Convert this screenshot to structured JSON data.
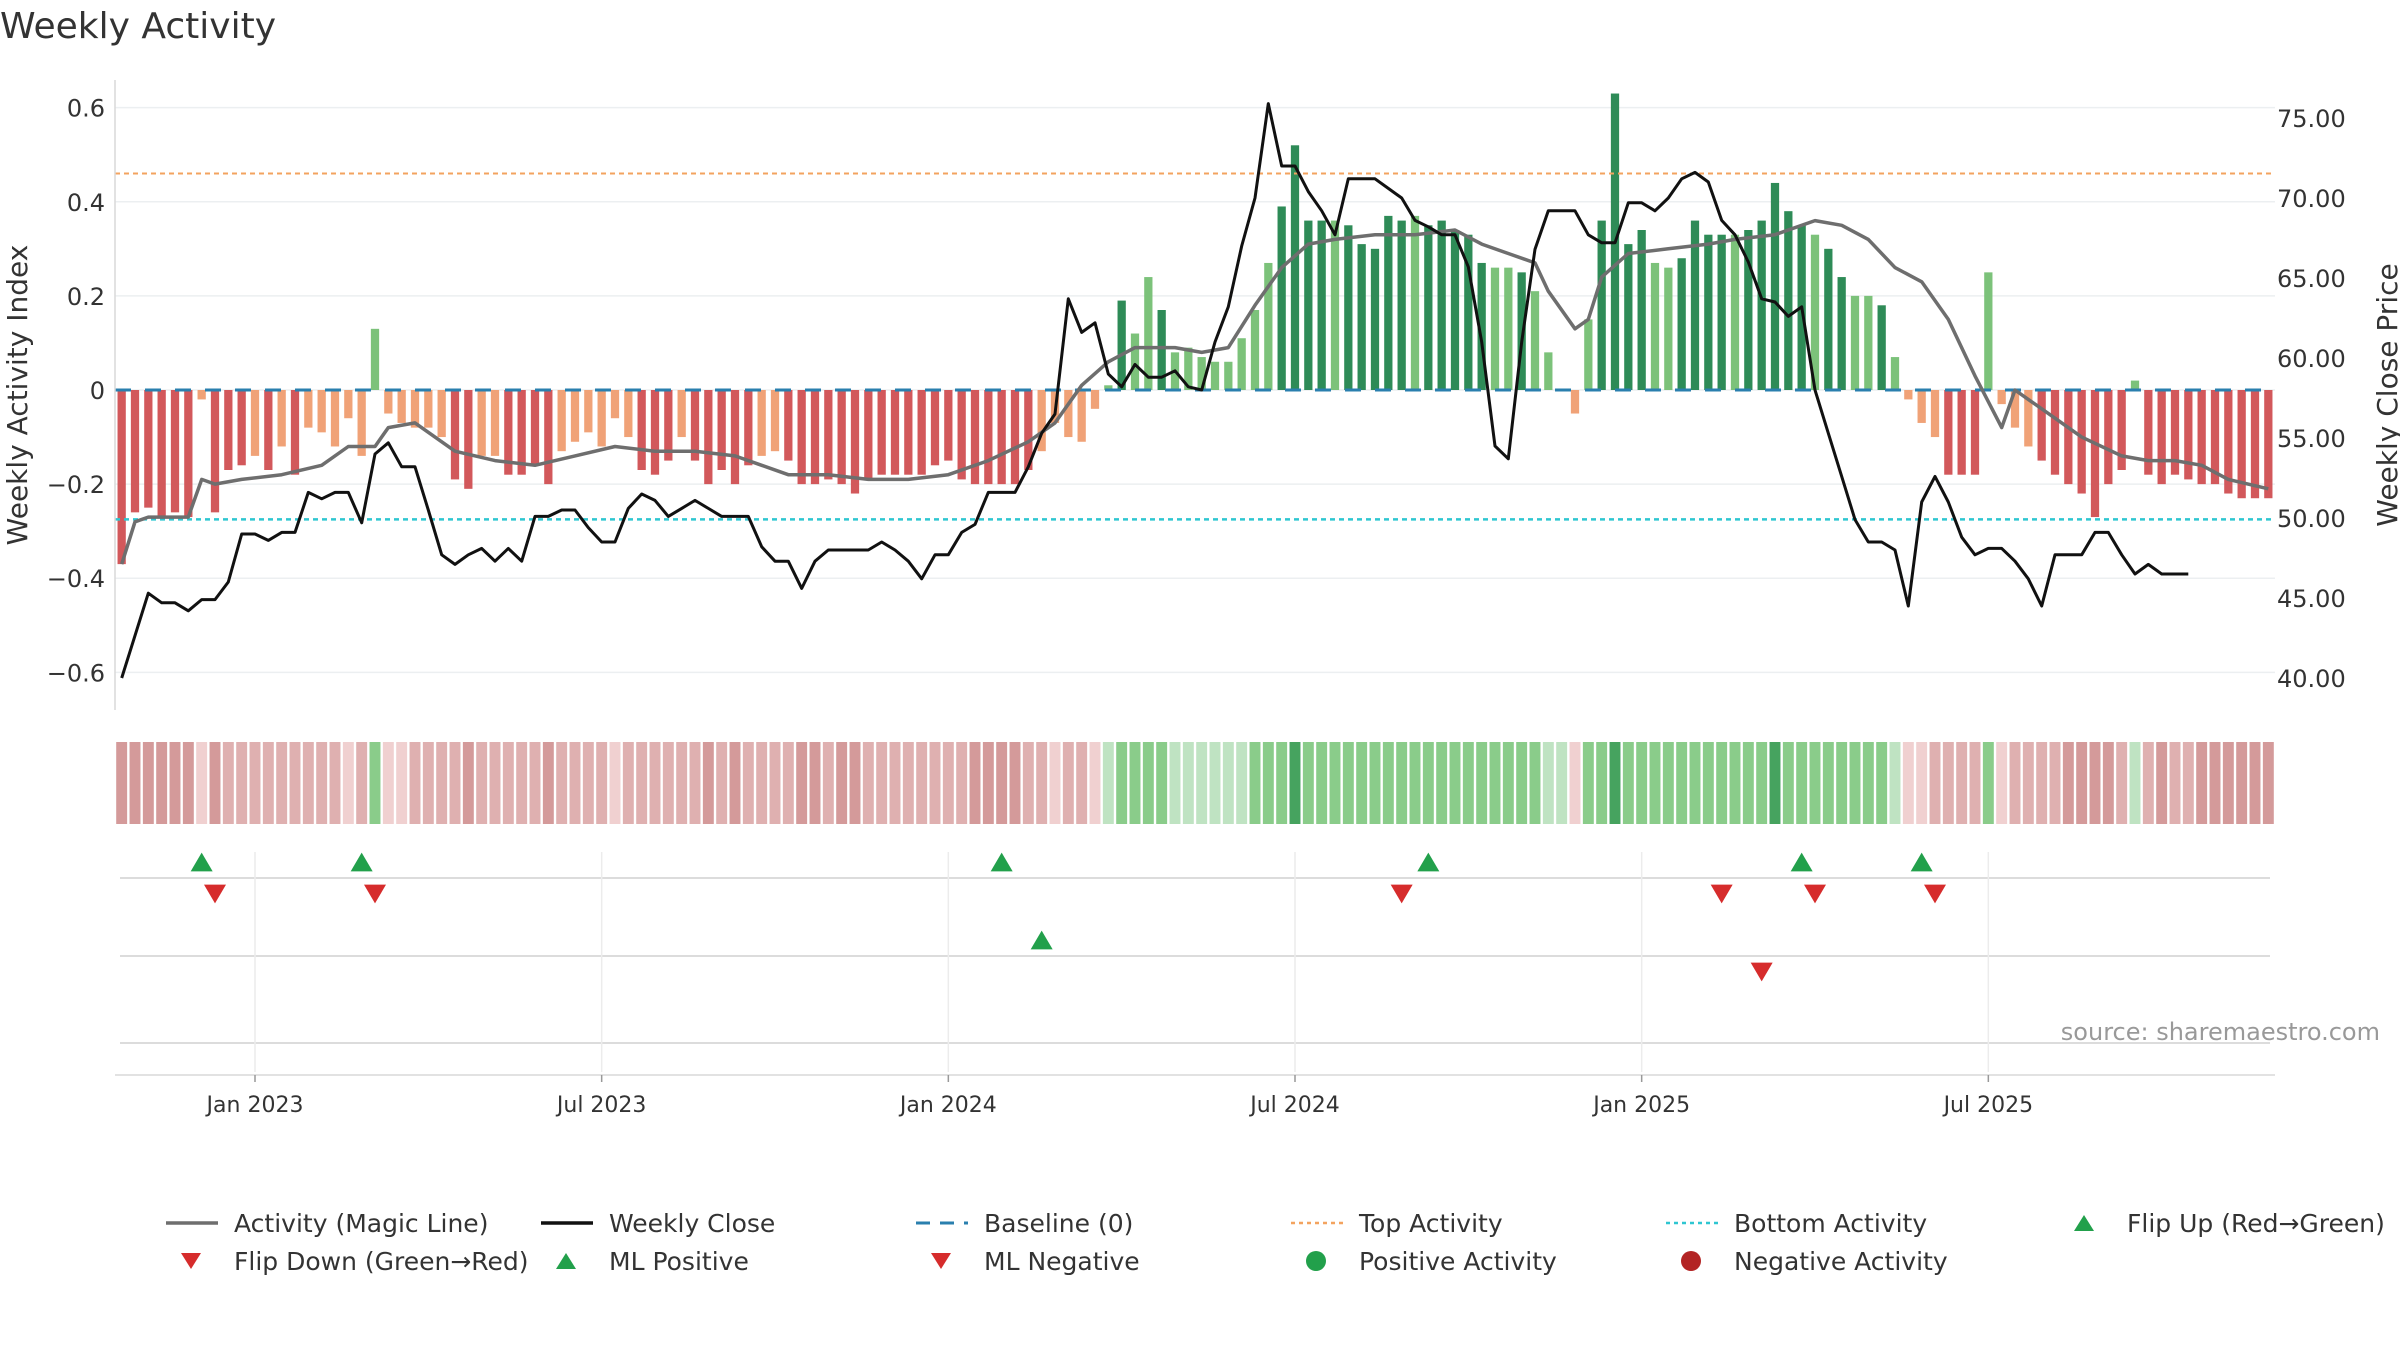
{
  "chart_data": {
    "type": "bar+line",
    "title": "Weekly Activity",
    "ylabel_left": "Weekly Activity Index",
    "ylabel_right": "Weekly Close Price",
    "ylim_left": [
      -0.68,
      0.68
    ],
    "ylim_right": [
      38.0,
      78.0
    ],
    "yticks_left": [
      {
        "v": 0.6,
        "label": "0.6"
      },
      {
        "v": 0.4,
        "label": "0.4"
      },
      {
        "v": 0.2,
        "label": "0.2"
      },
      {
        "v": 0,
        "label": "0"
      },
      {
        "v": -0.2,
        "label": "−0.2"
      },
      {
        "v": -0.4,
        "label": "−0.4"
      },
      {
        "v": -0.6,
        "label": "−0.6"
      }
    ],
    "yticks_right": [
      "75.00",
      "70.00",
      "65.00",
      "60.00",
      "55.00",
      "50.00",
      "45.00",
      "40.00"
    ],
    "x_ticks": [
      {
        "week": 10,
        "label": "Jan 2023"
      },
      {
        "week": 36,
        "label": "Jul 2023"
      },
      {
        "week": 62,
        "label": "Jan 2024"
      },
      {
        "week": 88,
        "label": "Jul 2024"
      },
      {
        "week": 114,
        "label": "Jan 2025"
      },
      {
        "week": 140,
        "label": "Jul 2025"
      }
    ],
    "top_activity": 0.46,
    "bottom_activity": -0.275,
    "baseline": 0,
    "activity": [
      -0.37,
      -0.26,
      -0.25,
      -0.27,
      -0.26,
      -0.27,
      -0.02,
      -0.26,
      -0.17,
      -0.16,
      -0.14,
      -0.17,
      -0.12,
      -0.18,
      -0.08,
      -0.09,
      -0.12,
      -0.06,
      -0.14,
      0.13,
      -0.05,
      -0.07,
      -0.08,
      -0.08,
      -0.1,
      -0.19,
      -0.21,
      -0.14,
      -0.14,
      -0.18,
      -0.18,
      -0.16,
      -0.2,
      -0.13,
      -0.11,
      -0.09,
      -0.12,
      -0.06,
      -0.1,
      -0.17,
      -0.18,
      -0.15,
      -0.1,
      -0.15,
      -0.2,
      -0.17,
      -0.2,
      -0.16,
      -0.14,
      -0.13,
      -0.15,
      -0.2,
      -0.2,
      -0.19,
      -0.2,
      -0.22,
      -0.19,
      -0.18,
      -0.18,
      -0.18,
      -0.18,
      -0.16,
      -0.15,
      -0.19,
      -0.2,
      -0.2,
      -0.2,
      -0.2,
      -0.17,
      -0.13,
      -0.07,
      -0.1,
      -0.11,
      -0.04,
      0.01,
      0.19,
      0.12,
      0.24,
      0.17,
      0.08,
      0.09,
      0.07,
      0.06,
      0.06,
      0.11,
      0.17,
      0.27,
      0.39,
      0.52,
      0.36,
      0.36,
      0.36,
      0.35,
      0.31,
      0.3,
      0.37,
      0.36,
      0.37,
      0.35,
      0.36,
      0.34,
      0.33,
      0.27,
      0.26,
      0.26,
      0.25,
      0.21,
      0.08,
      0,
      -0.05,
      0.15,
      0.36,
      0.63,
      0.31,
      0.34,
      0.27,
      0.26,
      0.28,
      0.36,
      0.33,
      0.33,
      0.33,
      0.34,
      0.36,
      0.44,
      0.38,
      0.35,
      0.33,
      0.3,
      0.24,
      0.2,
      0.2,
      0.18,
      0.07,
      -0.02,
      -0.07,
      -0.1,
      -0.18,
      -0.18,
      -0.18,
      0.25,
      -0.03,
      -0.08,
      -0.12,
      -0.15,
      -0.18,
      -0.2,
      -0.22,
      -0.27,
      -0.2,
      -0.17,
      0.02,
      -0.18,
      -0.2,
      -0.18,
      -0.19,
      -0.2,
      -0.2,
      -0.22,
      -0.23,
      -0.23,
      -0.23
    ],
    "state_colors": {
      "strong_pos": "#2e8b57",
      "weak_pos": "#7cc27a",
      "weak_neg": "#f0a277",
      "strong_neg": "#d2585b"
    },
    "strip_colors": {
      "strong_pos": "#46a35f",
      "pos": "#8acc8a",
      "weak_pos": "#bfe3c2",
      "weak_neg": "#f0d0d0",
      "neg": "#dfb0b0",
      "strong_neg": "#d49a9a"
    },
    "series_colors": {
      "magic_line": "#6e6e6e",
      "weekly_close": "#111111",
      "baseline": "#2a7fae",
      "top_activity": "#f3a35f",
      "bottom_activity": "#2ec6d1",
      "up_marker": "#22a04b",
      "down_marker": "#d62c2c",
      "positive_dot": "#22a04b",
      "negative_dot": "#b32424"
    },
    "magic_line": [
      {
        "w": 0,
        "v": -0.37
      },
      {
        "w": 1,
        "v": -0.28
      },
      {
        "w": 2,
        "v": -0.27
      },
      {
        "w": 5,
        "v": -0.27
      },
      {
        "w": 6,
        "v": -0.19
      },
      {
        "w": 7,
        "v": -0.2
      },
      {
        "w": 9,
        "v": -0.19
      },
      {
        "w": 12,
        "v": -0.18
      },
      {
        "w": 15,
        "v": -0.16
      },
      {
        "w": 17,
        "v": -0.12
      },
      {
        "w": 19,
        "v": -0.12
      },
      {
        "w": 20,
        "v": -0.08
      },
      {
        "w": 22,
        "v": -0.07
      },
      {
        "w": 25,
        "v": -0.13
      },
      {
        "w": 28,
        "v": -0.15
      },
      {
        "w": 31,
        "v": -0.16
      },
      {
        "w": 34,
        "v": -0.14
      },
      {
        "w": 37,
        "v": -0.12
      },
      {
        "w": 40,
        "v": -0.13
      },
      {
        "w": 43,
        "v": -0.13
      },
      {
        "w": 46,
        "v": -0.14
      },
      {
        "w": 48,
        "v": -0.16
      },
      {
        "w": 50,
        "v": -0.18
      },
      {
        "w": 53,
        "v": -0.18
      },
      {
        "w": 56,
        "v": -0.19
      },
      {
        "w": 59,
        "v": -0.19
      },
      {
        "w": 62,
        "v": -0.18
      },
      {
        "w": 65,
        "v": -0.15
      },
      {
        "w": 68,
        "v": -0.11
      },
      {
        "w": 70,
        "v": -0.07
      },
      {
        "w": 72,
        "v": 0.01
      },
      {
        "w": 74,
        "v": 0.06
      },
      {
        "w": 76,
        "v": 0.09
      },
      {
        "w": 79,
        "v": 0.09
      },
      {
        "w": 81,
        "v": 0.08
      },
      {
        "w": 83,
        "v": 0.09
      },
      {
        "w": 85,
        "v": 0.18
      },
      {
        "w": 87,
        "v": 0.26
      },
      {
        "w": 89,
        "v": 0.31
      },
      {
        "w": 91,
        "v": 0.32
      },
      {
        "w": 94,
        "v": 0.33
      },
      {
        "w": 97,
        "v": 0.33
      },
      {
        "w": 100,
        "v": 0.34
      },
      {
        "w": 102,
        "v": 0.31
      },
      {
        "w": 104,
        "v": 0.29
      },
      {
        "w": 106,
        "v": 0.27
      },
      {
        "w": 107,
        "v": 0.21
      },
      {
        "w": 109,
        "v": 0.13
      },
      {
        "w": 110,
        "v": 0.15
      },
      {
        "w": 111,
        "v": 0.24
      },
      {
        "w": 113,
        "v": 0.29
      },
      {
        "w": 116,
        "v": 0.3
      },
      {
        "w": 119,
        "v": 0.31
      },
      {
        "w": 121,
        "v": 0.32
      },
      {
        "w": 124,
        "v": 0.33
      },
      {
        "w": 127,
        "v": 0.36
      },
      {
        "w": 129,
        "v": 0.35
      },
      {
        "w": 131,
        "v": 0.32
      },
      {
        "w": 133,
        "v": 0.26
      },
      {
        "w": 135,
        "v": 0.23
      },
      {
        "w": 137,
        "v": 0.15
      },
      {
        "w": 139,
        "v": 0.03
      },
      {
        "w": 141,
        "v": -0.08
      },
      {
        "w": 142,
        "v": 0
      },
      {
        "w": 143,
        "v": -0.02
      },
      {
        "w": 145,
        "v": -0.06
      },
      {
        "w": 147,
        "v": -0.1
      },
      {
        "w": 150,
        "v": -0.14
      },
      {
        "w": 152,
        "v": -0.15
      },
      {
        "w": 154,
        "v": -0.15
      },
      {
        "w": 156,
        "v": -0.16
      },
      {
        "w": 158,
        "v": -0.19
      },
      {
        "w": 161,
        "v": -0.21
      }
    ],
    "weekly_close": [
      {
        "w": 0,
        "v": 40.0
      },
      {
        "w": 2,
        "v": 45.3
      },
      {
        "w": 3,
        "v": 44.7
      },
      {
        "w": 4,
        "v": 44.7
      },
      {
        "w": 5,
        "v": 44.2
      },
      {
        "w": 6,
        "v": 44.9
      },
      {
        "w": 7,
        "v": 44.9
      },
      {
        "w": 8,
        "v": 46.0
      },
      {
        "w": 9,
        "v": 49.0
      },
      {
        "w": 10,
        "v": 49.0
      },
      {
        "w": 11,
        "v": 48.6
      },
      {
        "w": 12,
        "v": 49.1
      },
      {
        "w": 13,
        "v": 49.1
      },
      {
        "w": 14,
        "v": 51.6
      },
      {
        "w": 15,
        "v": 51.2
      },
      {
        "w": 16,
        "v": 51.6
      },
      {
        "w": 17,
        "v": 51.6
      },
      {
        "w": 18,
        "v": 49.7
      },
      {
        "w": 19,
        "v": 54.0
      },
      {
        "w": 20,
        "v": 54.7
      },
      {
        "w": 21,
        "v": 53.2
      },
      {
        "w": 22,
        "v": 53.2
      },
      {
        "w": 23,
        "v": 50.5
      },
      {
        "w": 24,
        "v": 47.7
      },
      {
        "w": 25,
        "v": 47.1
      },
      {
        "w": 26,
        "v": 47.7
      },
      {
        "w": 27,
        "v": 48.1
      },
      {
        "w": 28,
        "v": 47.3
      },
      {
        "w": 29,
        "v": 48.1
      },
      {
        "w": 30,
        "v": 47.3
      },
      {
        "w": 31,
        "v": 50.1
      },
      {
        "w": 32,
        "v": 50.1
      },
      {
        "w": 33,
        "v": 50.5
      },
      {
        "w": 34,
        "v": 50.5
      },
      {
        "w": 35,
        "v": 49.4
      },
      {
        "w": 36,
        "v": 48.5
      },
      {
        "w": 37,
        "v": 48.5
      },
      {
        "w": 38,
        "v": 50.6
      },
      {
        "w": 39,
        "v": 51.5
      },
      {
        "w": 40,
        "v": 51.1
      },
      {
        "w": 41,
        "v": 50.1
      },
      {
        "w": 42,
        "v": 50.6
      },
      {
        "w": 43,
        "v": 51.1
      },
      {
        "w": 44,
        "v": 50.6
      },
      {
        "w": 45,
        "v": 50.1
      },
      {
        "w": 46,
        "v": 50.1
      },
      {
        "w": 47,
        "v": 50.1
      },
      {
        "w": 48,
        "v": 48.2
      },
      {
        "w": 49,
        "v": 47.3
      },
      {
        "w": 50,
        "v": 47.3
      },
      {
        "w": 51,
        "v": 45.6
      },
      {
        "w": 52,
        "v": 47.3
      },
      {
        "w": 53,
        "v": 48.0
      },
      {
        "w": 54,
        "v": 48.0
      },
      {
        "w": 55,
        "v": 48.0
      },
      {
        "w": 56,
        "v": 48.0
      },
      {
        "w": 57,
        "v": 48.5
      },
      {
        "w": 58,
        "v": 48.0
      },
      {
        "w": 59,
        "v": 47.3
      },
      {
        "w": 60,
        "v": 46.2
      },
      {
        "w": 61,
        "v": 47.7
      },
      {
        "w": 62,
        "v": 47.7
      },
      {
        "w": 63,
        "v": 49.1
      },
      {
        "w": 64,
        "v": 49.6
      },
      {
        "w": 65,
        "v": 51.6
      },
      {
        "w": 66,
        "v": 51.6
      },
      {
        "w": 67,
        "v": 51.6
      },
      {
        "w": 68,
        "v": 53.2
      },
      {
        "w": 69,
        "v": 55.3
      },
      {
        "w": 70,
        "v": 56.5
      },
      {
        "w": 71,
        "v": 63.7
      },
      {
        "w": 72,
        "v": 61.6
      },
      {
        "w": 73,
        "v": 62.2
      },
      {
        "w": 74,
        "v": 59.0
      },
      {
        "w": 75,
        "v": 58.2
      },
      {
        "w": 76,
        "v": 59.6
      },
      {
        "w": 77,
        "v": 58.8
      },
      {
        "w": 78,
        "v": 58.8
      },
      {
        "w": 79,
        "v": 59.2
      },
      {
        "w": 80,
        "v": 58.2
      },
      {
        "w": 81,
        "v": 58.0
      },
      {
        "w": 82,
        "v": 61.0
      },
      {
        "w": 83,
        "v": 63.2
      },
      {
        "w": 84,
        "v": 67.0
      },
      {
        "w": 85,
        "v": 70.0
      },
      {
        "w": 86,
        "v": 75.9
      },
      {
        "w": 87,
        "v": 72.0
      },
      {
        "w": 88,
        "v": 72.0
      },
      {
        "w": 89,
        "v": 70.4
      },
      {
        "w": 90,
        "v": 69.2
      },
      {
        "w": 91,
        "v": 67.7
      },
      {
        "w": 92,
        "v": 71.2
      },
      {
        "w": 93,
        "v": 71.2
      },
      {
        "w": 94,
        "v": 71.2
      },
      {
        "w": 95,
        "v": 70.6
      },
      {
        "w": 96,
        "v": 70.0
      },
      {
        "w": 97,
        "v": 68.6
      },
      {
        "w": 98,
        "v": 68.2
      },
      {
        "w": 99,
        "v": 67.7
      },
      {
        "w": 100,
        "v": 67.7
      },
      {
        "w": 101,
        "v": 65.7
      },
      {
        "w": 102,
        "v": 61.0
      },
      {
        "w": 103,
        "v": 54.5
      },
      {
        "w": 104,
        "v": 53.7
      },
      {
        "w": 105,
        "v": 61.0
      },
      {
        "w": 106,
        "v": 66.8
      },
      {
        "w": 107,
        "v": 69.2
      },
      {
        "w": 108,
        "v": 69.2
      },
      {
        "w": 109,
        "v": 69.2
      },
      {
        "w": 110,
        "v": 67.7
      },
      {
        "w": 111,
        "v": 67.2
      },
      {
        "w": 112,
        "v": 67.2
      },
      {
        "w": 113,
        "v": 69.7
      },
      {
        "w": 114,
        "v": 69.7
      },
      {
        "w": 115,
        "v": 69.2
      },
      {
        "w": 116,
        "v": 70.0
      },
      {
        "w": 117,
        "v": 71.2
      },
      {
        "w": 118,
        "v": 71.6
      },
      {
        "w": 119,
        "v": 71.0
      },
      {
        "w": 120,
        "v": 68.6
      },
      {
        "w": 121,
        "v": 67.7
      },
      {
        "w": 122,
        "v": 66.0
      },
      {
        "w": 123,
        "v": 63.7
      },
      {
        "w": 124,
        "v": 63.5
      },
      {
        "w": 125,
        "v": 62.6
      },
      {
        "w": 126,
        "v": 63.2
      },
      {
        "w": 127,
        "v": 58.0
      },
      {
        "w": 128,
        "v": 55.3
      },
      {
        "w": 129,
        "v": 52.6
      },
      {
        "w": 130,
        "v": 49.9
      },
      {
        "w": 131,
        "v": 48.5
      },
      {
        "w": 132,
        "v": 48.5
      },
      {
        "w": 133,
        "v": 48.0
      },
      {
        "w": 134,
        "v": 44.5
      },
      {
        "w": 135,
        "v": 51.0
      },
      {
        "w": 136,
        "v": 52.6
      },
      {
        "w": 137,
        "v": 51.0
      },
      {
        "w": 138,
        "v": 48.8
      },
      {
        "w": 139,
        "v": 47.7
      },
      {
        "w": 140,
        "v": 48.1
      },
      {
        "w": 141,
        "v": 48.1
      },
      {
        "w": 142,
        "v": 47.3
      },
      {
        "w": 143,
        "v": 46.2
      },
      {
        "w": 144,
        "v": 44.5
      },
      {
        "w": 145,
        "v": 47.7
      },
      {
        "w": 146,
        "v": 47.7
      },
      {
        "w": 147,
        "v": 47.7
      },
      {
        "w": 148,
        "v": 49.1
      },
      {
        "w": 149,
        "v": 49.1
      },
      {
        "w": 150,
        "v": 47.7
      },
      {
        "w": 151,
        "v": 46.5
      },
      {
        "w": 152,
        "v": 47.1
      },
      {
        "w": 153,
        "v": 46.5
      },
      {
        "w": 154,
        "v": 46.5
      },
      {
        "w": 155,
        "v": 46.5
      }
    ],
    "flip_up_weeks": [
      6,
      18,
      66,
      98,
      126,
      135
    ],
    "flip_down_weeks": [
      7,
      19,
      96,
      120,
      127,
      136
    ],
    "ml_positive_weeks": [
      69
    ],
    "ml_negative_weeks": [
      123
    ],
    "source": "source: sharemaestro.com",
    "legend": [
      {
        "key": "magic_line",
        "label": "Activity (Magic Line)",
        "style": "line"
      },
      {
        "key": "weekly_close",
        "label": "Weekly Close",
        "style": "line"
      },
      {
        "key": "baseline",
        "label": "Baseline (0)",
        "style": "dash"
      },
      {
        "key": "top_activity",
        "label": "Top Activity",
        "style": "dot"
      },
      {
        "key": "bottom_activity",
        "label": "Bottom Activity",
        "style": "dot"
      },
      {
        "key": "up_marker",
        "label": "Flip Up (Red→Green)",
        "style": "tri-up"
      },
      {
        "key": "down_marker",
        "label": "Flip Down (Green→Red)",
        "style": "tri-down"
      },
      {
        "key": "up_marker",
        "label": "ML Positive",
        "style": "tri-up"
      },
      {
        "key": "down_marker",
        "label": "ML Negative",
        "style": "tri-down"
      },
      {
        "key": "positive_dot",
        "label": "Positive Activity",
        "style": "circle"
      },
      {
        "key": "negative_dot",
        "label": "Negative Activity",
        "style": "circle"
      }
    ]
  }
}
